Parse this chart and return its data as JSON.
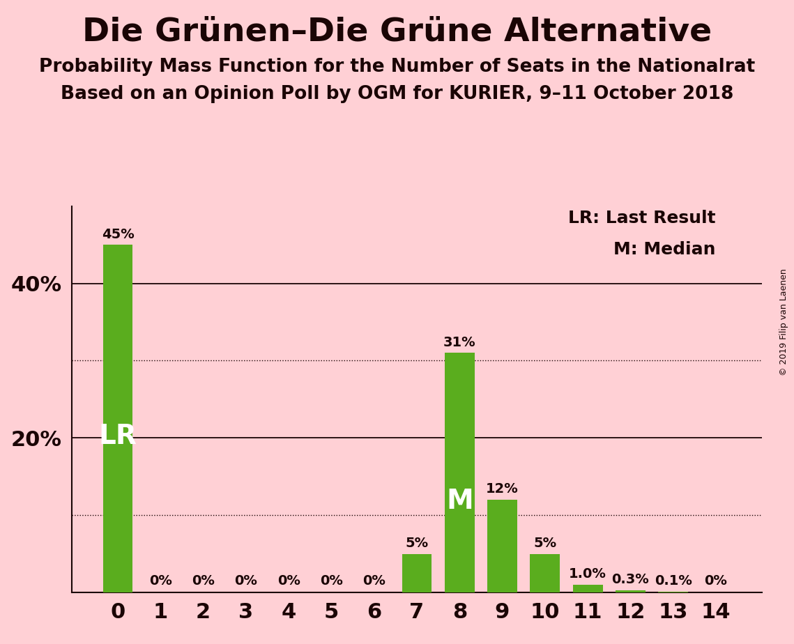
{
  "title": "Die Grünen–Die Grüne Alternative",
  "subtitle1": "Probability Mass Function for the Number of Seats in the Nationalrat",
  "subtitle2": "Based on an Opinion Poll by OGM for KURIER, 9–11 October 2018",
  "copyright": "© 2019 Filip van Laenen",
  "categories": [
    0,
    1,
    2,
    3,
    4,
    5,
    6,
    7,
    8,
    9,
    10,
    11,
    12,
    13,
    14
  ],
  "values": [
    45,
    0,
    0,
    0,
    0,
    0,
    0,
    5,
    31,
    12,
    5,
    1.0,
    0.3,
    0.1,
    0
  ],
  "bar_color": "#5aad1e",
  "background_color": "#ffd0d5",
  "text_color": "#1a0505",
  "lr_bar": 0,
  "median_bar": 8,
  "ylim": [
    0,
    50
  ],
  "solid_gridlines": [
    20,
    40
  ],
  "dotted_gridlines": [
    10,
    30
  ],
  "legend_line1": "LR: Last Result",
  "legend_line2": "M: Median",
  "bar_labels": [
    "45%",
    "0%",
    "0%",
    "0%",
    "0%",
    "0%",
    "0%",
    "5%",
    "31%",
    "12%",
    "5%",
    "1.0%",
    "0.3%",
    "0.1%",
    "0%"
  ],
  "figsize": [
    11.39,
    9.24
  ],
  "dpi": 100
}
